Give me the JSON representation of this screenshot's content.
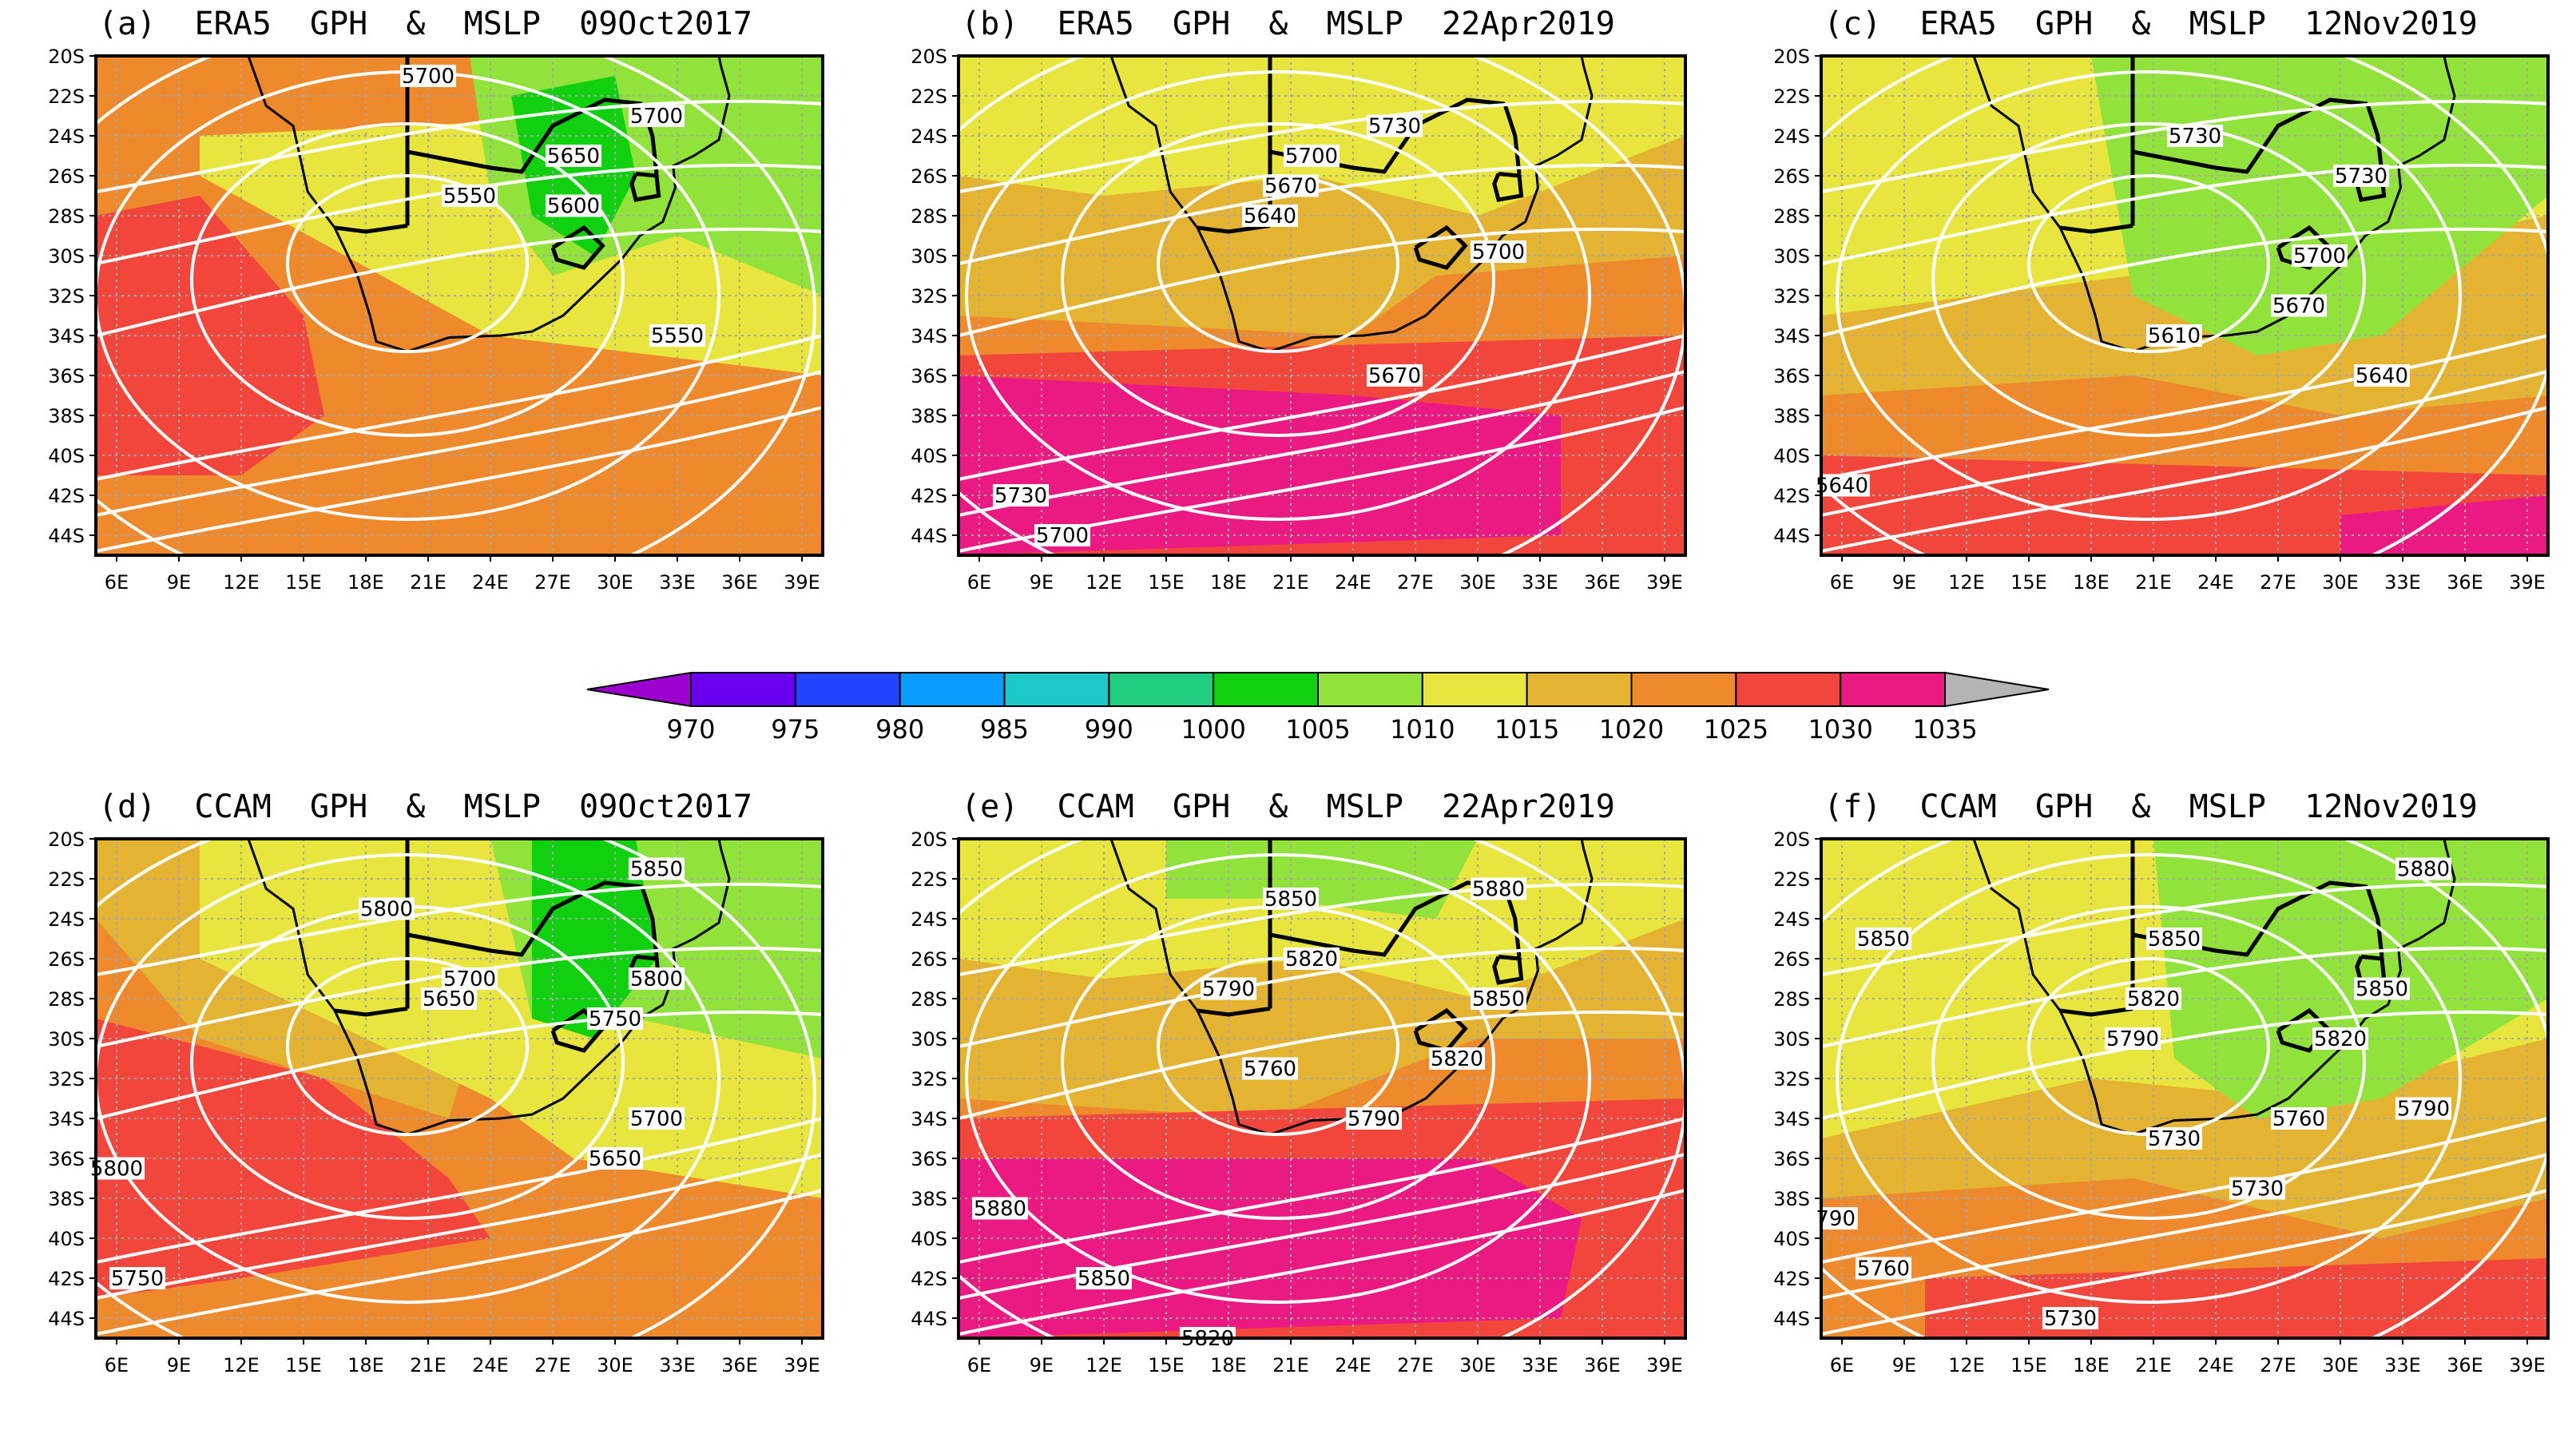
{
  "colors": {
    "bins": [
      "#9b00d0",
      "#6a00f0",
      "#2244ff",
      "#0a9cff",
      "#1bc7c7",
      "#20cc80",
      "#10d010",
      "#92e23c",
      "#e8e63e",
      "#e5b332",
      "#ee8a2c",
      "#f2463c",
      "#ea1a82",
      "#b4b4b4"
    ],
    "contour": "#ffffff",
    "coast": "#000000",
    "grid": "#a7a7a7"
  },
  "x_ticks": [
    "6E",
    "9E",
    "12E",
    "15E",
    "18E",
    "21E",
    "24E",
    "27E",
    "30E",
    "33E",
    "36E",
    "39E"
  ],
  "y_ticks": [
    "20S",
    "22S",
    "24S",
    "26S",
    "28S",
    "30S",
    "32S",
    "34S",
    "36S",
    "38S",
    "40S",
    "42S",
    "44S"
  ],
  "colorbar": {
    "ticks": [
      "970",
      "975",
      "980",
      "985",
      "990",
      "1000",
      "1005",
      "1010",
      "1015",
      "1020",
      "1025",
      "1030",
      "1035"
    ]
  },
  "panels": [
    {
      "title": "(a)  ERA5  GPH  &  MSLP  09Oct2017",
      "fill_base": 10,
      "zones": [
        {
          "bin": 8,
          "pts": [
            [
              10,
              -24
            ],
            [
              30,
              -23
            ],
            [
              40,
              -28
            ],
            [
              40,
              -36
            ],
            [
              24,
              -34
            ],
            [
              10,
              -26
            ]
          ]
        },
        {
          "bin": 7,
          "pts": [
            [
              23,
              -20
            ],
            [
              40,
              -20
            ],
            [
              40,
              -32
            ],
            [
              33,
              -29
            ],
            [
              27,
              -31
            ],
            [
              24,
              -27
            ]
          ]
        },
        {
          "bin": 6,
          "pts": [
            [
              25,
              -22
            ],
            [
              30,
              -21
            ],
            [
              31,
              -26
            ],
            [
              29,
              -30
            ],
            [
              26,
              -28
            ]
          ]
        },
        {
          "bin": 11,
          "pts": [
            [
              5,
              -28
            ],
            [
              10,
              -27
            ],
            [
              15,
              -33
            ],
            [
              16,
              -38
            ],
            [
              12,
              -41
            ],
            [
              5,
              -41
            ]
          ]
        }
      ],
      "labels": [
        {
          "text": "5700",
          "lon": 21,
          "lat": -21
        },
        {
          "text": "5700",
          "lon": 32,
          "lat": -23
        },
        {
          "text": "5650",
          "lon": 28,
          "lat": -25
        },
        {
          "text": "5550",
          "lon": 23,
          "lat": -27
        },
        {
          "text": "5600",
          "lon": 28,
          "lat": -27.5
        },
        {
          "text": "5550",
          "lon": 33,
          "lat": -34
        }
      ]
    },
    {
      "title": "(b)  ERA5  GPH  &  MSLP  22Apr2019",
      "fill_base": 9,
      "zones": [
        {
          "bin": 8,
          "pts": [
            [
              5,
              -20
            ],
            [
              40,
              -20
            ],
            [
              40,
              -24
            ],
            [
              30,
              -28
            ],
            [
              22,
              -26
            ],
            [
              12,
              -27
            ],
            [
              5,
              -26
            ]
          ]
        },
        {
          "bin": 10,
          "pts": [
            [
              5,
              -33
            ],
            [
              24,
              -34
            ],
            [
              28,
              -31
            ],
            [
              40,
              -30
            ],
            [
              40,
              -45
            ],
            [
              5,
              -45
            ]
          ]
        },
        {
          "bin": 11,
          "pts": [
            [
              5,
              -35
            ],
            [
              40,
              -34
            ],
            [
              40,
              -45
            ],
            [
              5,
              -45
            ]
          ]
        },
        {
          "bin": 12,
          "pts": [
            [
              5,
              -36
            ],
            [
              24,
              -37
            ],
            [
              34,
              -38
            ],
            [
              34,
              -44
            ],
            [
              5,
              -45
            ]
          ]
        }
      ],
      "labels": [
        {
          "text": "5700",
          "lon": 22,
          "lat": -25
        },
        {
          "text": "5730",
          "lon": 26,
          "lat": -23.5
        },
        {
          "text": "5670",
          "lon": 21,
          "lat": -26.5
        },
        {
          "text": "5640",
          "lon": 20,
          "lat": -28
        },
        {
          "text": "5700",
          "lon": 31,
          "lat": -29.8
        },
        {
          "text": "5670",
          "lon": 26,
          "lat": -36
        },
        {
          "text": "5730",
          "lon": 8,
          "lat": -42
        },
        {
          "text": "5700",
          "lon": 10,
          "lat": -44
        }
      ]
    },
    {
      "title": "(c)  ERA5  GPH  &  MSLP  12Nov2019",
      "fill_base": 9,
      "zones": [
        {
          "bin": 8,
          "pts": [
            [
              5,
              -20
            ],
            [
              40,
              -20
            ],
            [
              40,
              -28
            ],
            [
              30,
              -30
            ],
            [
              20,
              -31
            ],
            [
              5,
              -33
            ]
          ]
        },
        {
          "bin": 7,
          "pts": [
            [
              18,
              -20
            ],
            [
              40,
              -20
            ],
            [
              40,
              -27
            ],
            [
              32,
              -34
            ],
            [
              26,
              -35
            ],
            [
              20,
              -32
            ]
          ]
        },
        {
          "bin": 10,
          "pts": [
            [
              5,
              -37
            ],
            [
              20,
              -36
            ],
            [
              30,
              -38
            ],
            [
              40,
              -37
            ],
            [
              40,
              -45
            ],
            [
              5,
              -45
            ]
          ]
        },
        {
          "bin": 11,
          "pts": [
            [
              5,
              -40
            ],
            [
              40,
              -41
            ],
            [
              40,
              -45
            ],
            [
              5,
              -45
            ]
          ]
        },
        {
          "bin": 12,
          "pts": [
            [
              30,
              -43
            ],
            [
              40,
              -42
            ],
            [
              40,
              -45
            ],
            [
              30,
              -45
            ]
          ]
        }
      ],
      "labels": [
        {
          "text": "5730",
          "lon": 23,
          "lat": -24
        },
        {
          "text": "5730",
          "lon": 31,
          "lat": -26
        },
        {
          "text": "5700",
          "lon": 29,
          "lat": -30
        },
        {
          "text": "5670",
          "lon": 28,
          "lat": -32.5
        },
        {
          "text": "5610",
          "lon": 22,
          "lat": -34
        },
        {
          "text": "5640",
          "lon": 32,
          "lat": -36
        },
        {
          "text": "5640",
          "lon": 6,
          "lat": -41.5
        }
      ]
    },
    {
      "title": "(d)  CCAM  GPH  &  MSLP  09Oct2017",
      "fill_base": 10,
      "zones": [
        {
          "bin": 9,
          "pts": [
            [
              5,
              -20
            ],
            [
              22,
              -20
            ],
            [
              24,
              -27
            ],
            [
              22,
              -34
            ],
            [
              10,
              -30
            ],
            [
              5,
              -24
            ]
          ]
        },
        {
          "bin": 8,
          "pts": [
            [
              10,
              -20
            ],
            [
              40,
              -20
            ],
            [
              40,
              -38
            ],
            [
              28,
              -36
            ],
            [
              24,
              -33
            ],
            [
              10,
              -26
            ]
          ]
        },
        {
          "bin": 7,
          "pts": [
            [
              24,
              -20
            ],
            [
              40,
              -20
            ],
            [
              40,
              -31
            ],
            [
              31,
              -29
            ],
            [
              26,
              -29
            ]
          ]
        },
        {
          "bin": 6,
          "pts": [
            [
              26,
              -20
            ],
            [
              31,
              -20
            ],
            [
              32,
              -26
            ],
            [
              29,
              -30
            ],
            [
              26,
              -29
            ]
          ]
        },
        {
          "bin": 11,
          "pts": [
            [
              5,
              -29
            ],
            [
              16,
              -32
            ],
            [
              22,
              -37
            ],
            [
              24,
              -40
            ],
            [
              12,
              -42
            ],
            [
              5,
              -43
            ]
          ]
        }
      ],
      "labels": [
        {
          "text": "5850",
          "lon": 32,
          "lat": -21.5
        },
        {
          "text": "5800",
          "lon": 19,
          "lat": -23.5
        },
        {
          "text": "5700",
          "lon": 23,
          "lat": -27
        },
        {
          "text": "5800",
          "lon": 32,
          "lat": -27
        },
        {
          "text": "5650",
          "lon": 22,
          "lat": -28
        },
        {
          "text": "5750",
          "lon": 30,
          "lat": -29
        },
        {
          "text": "5700",
          "lon": 32,
          "lat": -34
        },
        {
          "text": "5650",
          "lon": 30,
          "lat": -36
        },
        {
          "text": "5800",
          "lon": 6,
          "lat": -36.5
        },
        {
          "text": "5750",
          "lon": 7,
          "lat": -42
        }
      ]
    },
    {
      "title": "(e)  CCAM  GPH  &  MSLP  22Apr2019",
      "fill_base": 9,
      "zones": [
        {
          "bin": 8,
          "pts": [
            [
              5,
              -20
            ],
            [
              40,
              -20
            ],
            [
              40,
              -24
            ],
            [
              30,
              -28
            ],
            [
              22,
              -26
            ],
            [
              12,
              -27
            ],
            [
              5,
              -26
            ]
          ]
        },
        {
          "bin": 7,
          "pts": [
            [
              15,
              -20
            ],
            [
              30,
              -20
            ],
            [
              28,
              -24
            ],
            [
              20,
              -23
            ],
            [
              15,
              -23
            ]
          ]
        },
        {
          "bin": 10,
          "pts": [
            [
              5,
              -33
            ],
            [
              20,
              -34
            ],
            [
              30,
              -30
            ],
            [
              40,
              -30
            ],
            [
              40,
              -45
            ],
            [
              5,
              -45
            ]
          ]
        },
        {
          "bin": 11,
          "pts": [
            [
              5,
              -34
            ],
            [
              40,
              -33
            ],
            [
              40,
              -45
            ],
            [
              5,
              -45
            ]
          ]
        },
        {
          "bin": 12,
          "pts": [
            [
              5,
              -36
            ],
            [
              30,
              -36
            ],
            [
              35,
              -39
            ],
            [
              34,
              -44
            ],
            [
              5,
              -45
            ]
          ]
        }
      ],
      "labels": [
        {
          "text": "5850",
          "lon": 21,
          "lat": -23
        },
        {
          "text": "5880",
          "lon": 31,
          "lat": -22.5
        },
        {
          "text": "5820",
          "lon": 22,
          "lat": -26
        },
        {
          "text": "5790",
          "lon": 18,
          "lat": -27.5
        },
        {
          "text": "5850",
          "lon": 31,
          "lat": -28
        },
        {
          "text": "5820",
          "lon": 29,
          "lat": -31
        },
        {
          "text": "5760",
          "lon": 20,
          "lat": -31.5
        },
        {
          "text": "5790",
          "lon": 25,
          "lat": -34
        },
        {
          "text": "5880",
          "lon": 7,
          "lat": -38.5
        },
        {
          "text": "5850",
          "lon": 12,
          "lat": -42
        },
        {
          "text": "5820",
          "lon": 17,
          "lat": -45
        }
      ]
    },
    {
      "title": "(f)  CCAM  GPH  &  MSLP  12Nov2019",
      "fill_base": 9,
      "zones": [
        {
          "bin": 8,
          "pts": [
            [
              5,
              -20
            ],
            [
              40,
              -20
            ],
            [
              40,
              -30
            ],
            [
              28,
              -33
            ],
            [
              18,
              -32
            ],
            [
              5,
              -35
            ]
          ]
        },
        {
          "bin": 7,
          "pts": [
            [
              21,
              -20
            ],
            [
              40,
              -20
            ],
            [
              40,
              -28
            ],
            [
              32,
              -33
            ],
            [
              26,
              -34
            ],
            [
              22,
              -31
            ]
          ]
        },
        {
          "bin": 10,
          "pts": [
            [
              5,
              -38
            ],
            [
              20,
              -37
            ],
            [
              32,
              -40
            ],
            [
              40,
              -38
            ],
            [
              40,
              -45
            ],
            [
              5,
              -45
            ]
          ]
        },
        {
          "bin": 11,
          "pts": [
            [
              10,
              -42
            ],
            [
              40,
              -41
            ],
            [
              40,
              -45
            ],
            [
              10,
              -45
            ]
          ]
        }
      ],
      "labels": [
        {
          "text": "5880",
          "lon": 34,
          "lat": -21.5
        },
        {
          "text": "5850",
          "lon": 8,
          "lat": -25
        },
        {
          "text": "5850",
          "lon": 22,
          "lat": -25
        },
        {
          "text": "5820",
          "lon": 21,
          "lat": -28
        },
        {
          "text": "5850",
          "lon": 32,
          "lat": -27.5
        },
        {
          "text": "5790",
          "lon": 20,
          "lat": -30
        },
        {
          "text": "5820",
          "lon": 30,
          "lat": -30
        },
        {
          "text": "5790",
          "lon": 34,
          "lat": -33.5
        },
        {
          "text": "5760",
          "lon": 28,
          "lat": -34
        },
        {
          "text": "5730",
          "lon": 22,
          "lat": -35
        },
        {
          "text": "5730",
          "lon": 26,
          "lat": -37.5
        },
        {
          "text": "790",
          "lon": 5.7,
          "lat": -39
        },
        {
          "text": "5760",
          "lon": 8,
          "lat": -41.5
        },
        {
          "text": "5730",
          "lon": 17,
          "lat": -44
        }
      ]
    }
  ]
}
